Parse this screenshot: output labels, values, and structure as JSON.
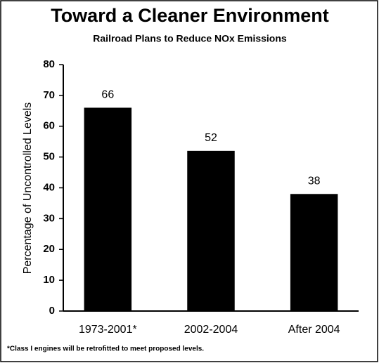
{
  "chart_data": {
    "type": "bar",
    "title": "Toward a Cleaner Environment",
    "subtitle": "Railroad Plans to Reduce NOx Emissions",
    "y_label": "Percentage of Uncontrolled Levels",
    "categories": [
      "1973-2001*",
      "2002-2004",
      "After 2004"
    ],
    "values": [
      66,
      52,
      38
    ],
    "color": "#000000",
    "ylim": [
      0,
      80
    ],
    "yticks": [
      0,
      10,
      20,
      30,
      40,
      50,
      60,
      70,
      80
    ],
    "grid": false,
    "footnote": "*Class I engines will be retrofitted to meet proposed levels."
  }
}
